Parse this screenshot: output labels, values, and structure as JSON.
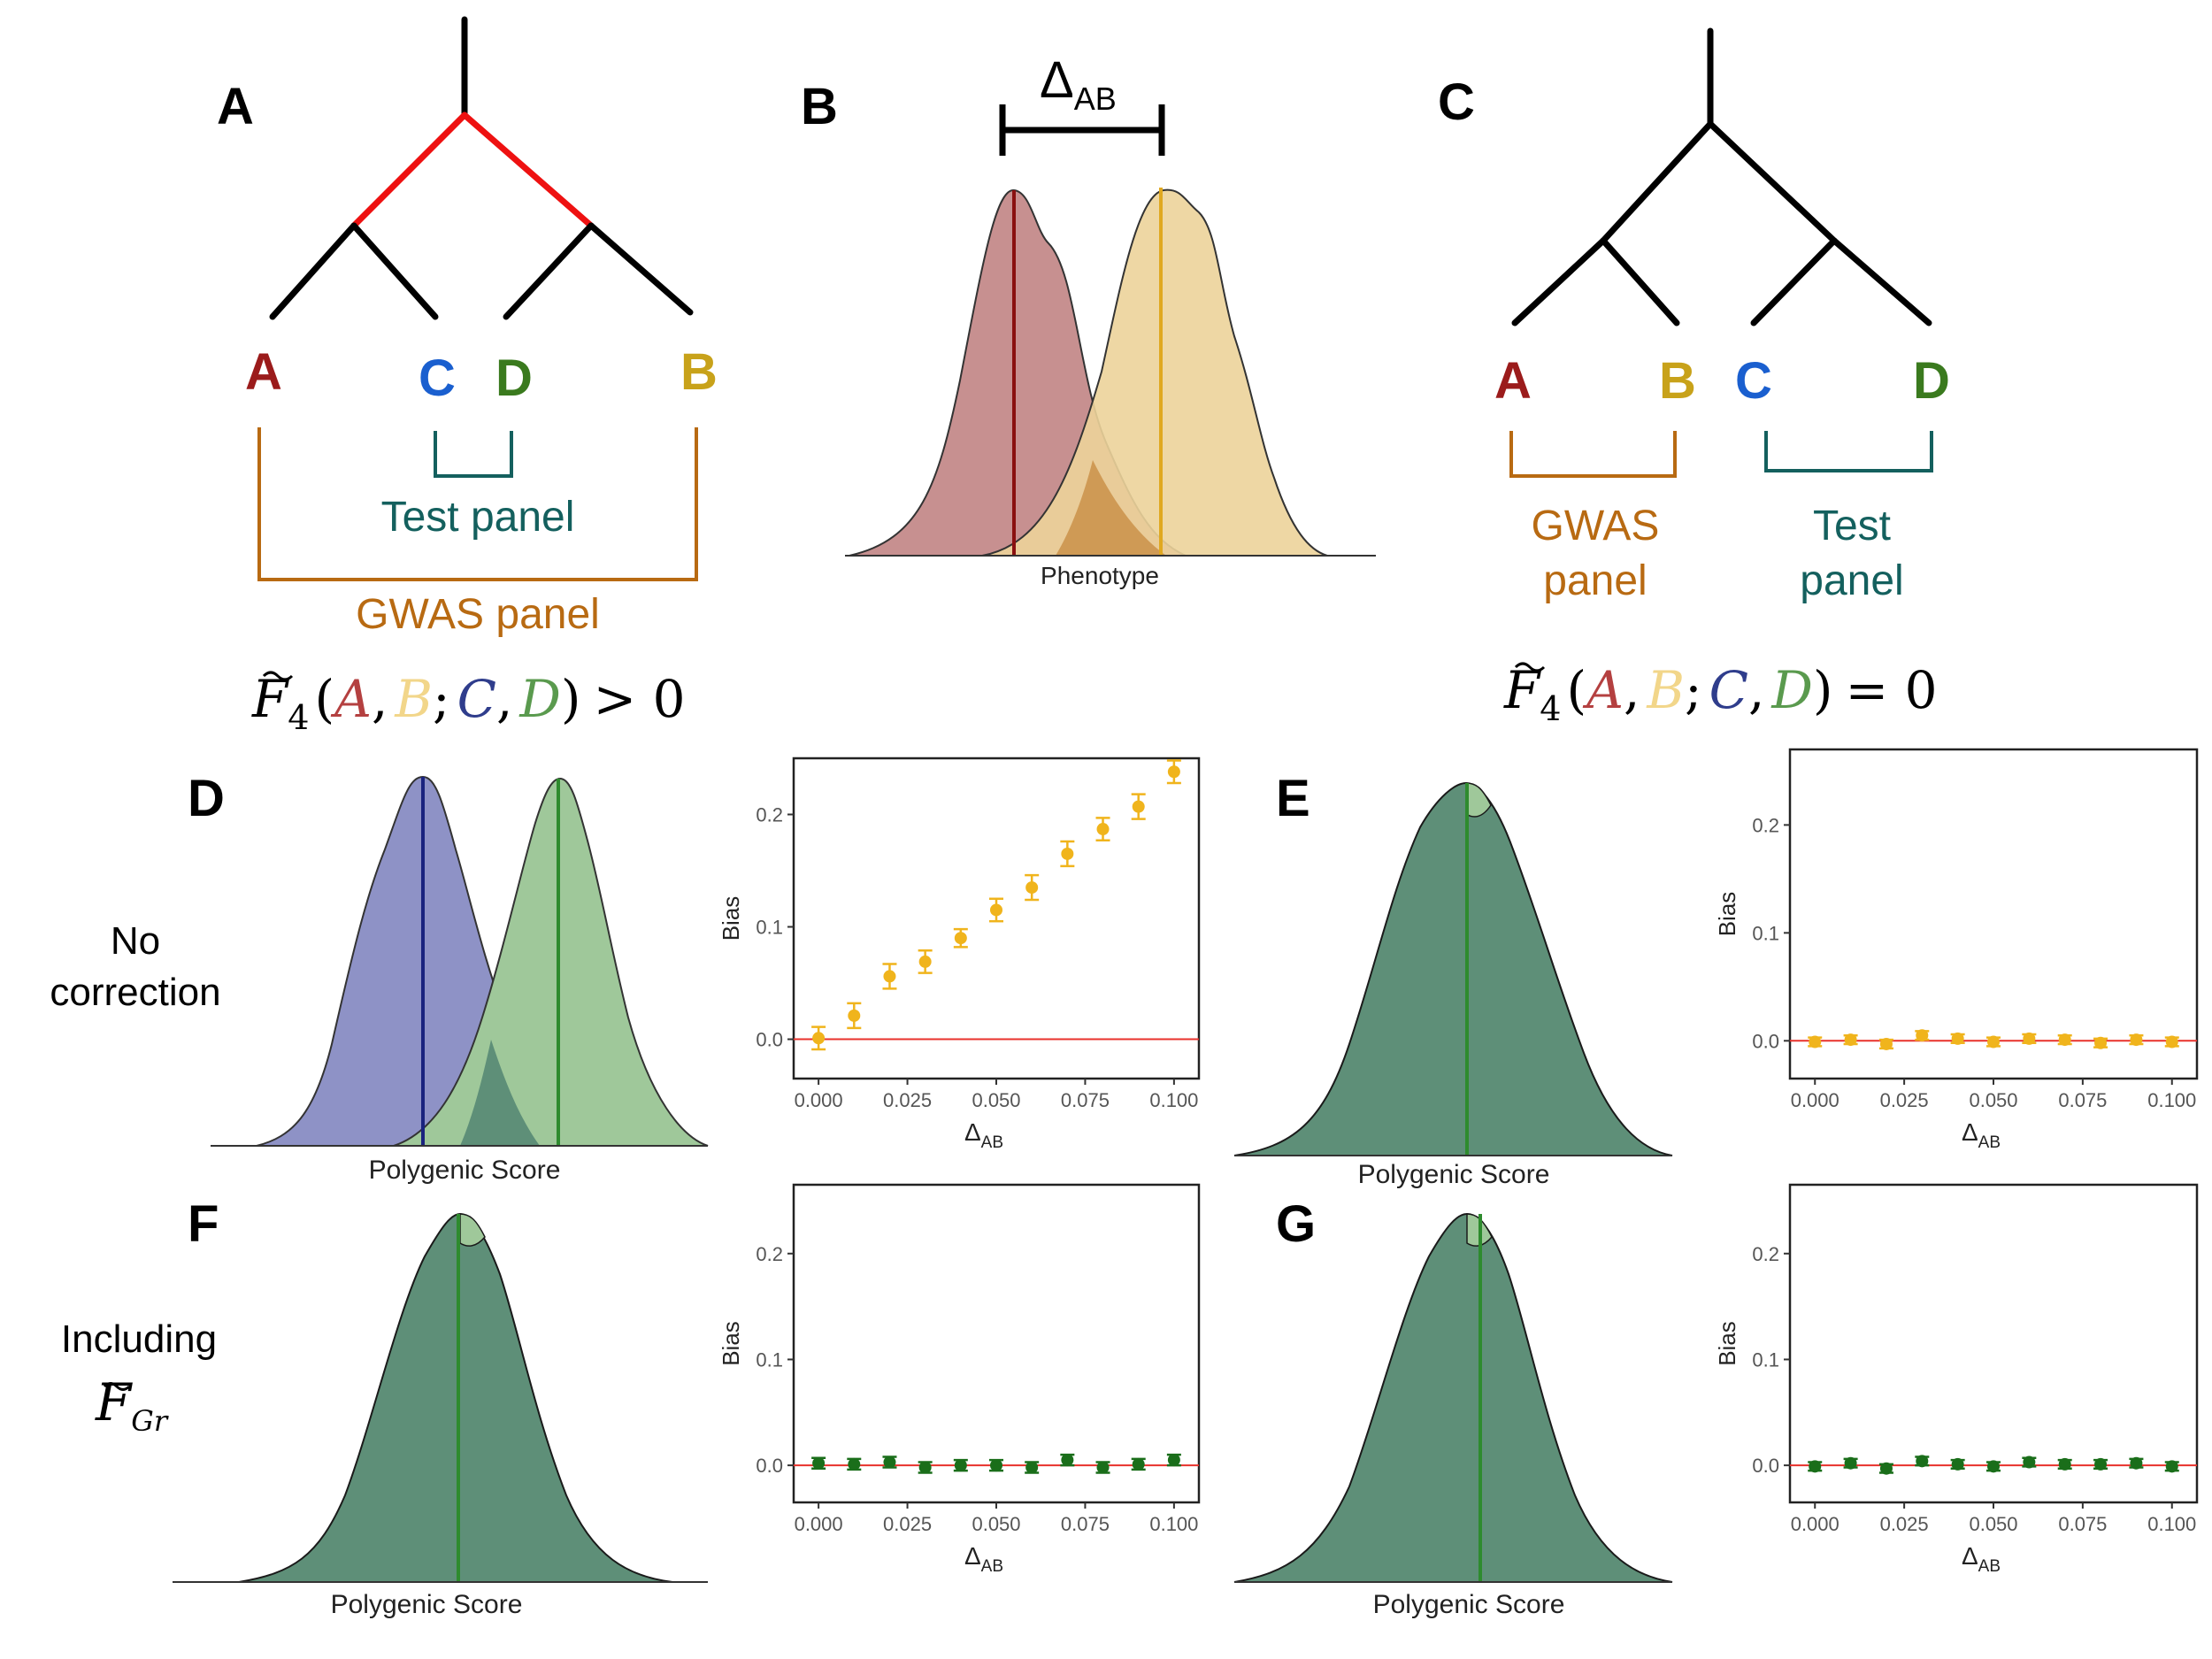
{
  "panels": {
    "A": {
      "letter": "A",
      "leaves": [
        "A",
        "C",
        "D",
        "B"
      ],
      "test_label": "Test panel",
      "gwas_label": "GWAS panel",
      "stat": {
        "f": "F",
        "sub": "4",
        "open": "(",
        "a": "A",
        "c1": ",",
        "b": "B",
        "semi": ";",
        "c": "C",
        "c2": ",",
        "d": "D",
        "close": ")",
        "rel": "> 0"
      }
    },
    "B": {
      "letter": "B",
      "delta": "Δ",
      "delta_sub": "AB",
      "xlabel": "Phenotype"
    },
    "C": {
      "letter": "C",
      "leaves": [
        "A",
        "B",
        "C",
        "D"
      ],
      "gwas_label_1": "GWAS",
      "gwas_label_2": "panel",
      "test_label_1": "Test",
      "test_label_2": "panel",
      "stat": {
        "f": "F",
        "sub": "4",
        "open": "(",
        "a": "A",
        "c1": ",",
        "b": "B",
        "semi": ";",
        "c": "C",
        "c2": ",",
        "d": "D",
        "close": ")",
        "rel": "= 0"
      }
    },
    "D": {
      "letter": "D",
      "xlabel": "Polygenic Score"
    },
    "E": {
      "letter": "E",
      "xlabel": "Polygenic Score"
    },
    "F": {
      "letter": "F",
      "xlabel": "Polygenic Score"
    },
    "G": {
      "letter": "G",
      "xlabel": "Polygenic Score"
    }
  },
  "rows": {
    "no_correction_1": "No",
    "no_correction_2": "correction",
    "including": "Including",
    "fgr_f": "F",
    "fgr_sub": "Gr"
  },
  "colors": {
    "pop_A": "#9b1b1b",
    "pop_B": "#c8a21a",
    "pop_C": "#1a5fcf",
    "pop_D": "#3a7a1e",
    "gwas": "#b86a12",
    "test": "#14605e",
    "branch_red": "#ee1111",
    "dist_A": "#c48a8a",
    "dist_B": "#ecd39a",
    "dist_C": "#8e92c6",
    "dist_D": "#9fc89a",
    "overlap": "#5e8f78",
    "point_yellow": "#f0b41c",
    "point_green": "#1a6e1a",
    "ref_line": "#e8312b"
  },
  "chart_data": [
    {
      "id": "D-bias",
      "type": "scatter",
      "xlabel": "Δ",
      "xlabel_sub": "AB",
      "ylabel": "Bias",
      "xlim": [
        -0.007,
        0.107
      ],
      "ylim": [
        -0.035,
        0.25
      ],
      "xticks": [
        "0.000",
        "0.025",
        "0.050",
        "0.075",
        "0.100"
      ],
      "yticks": [
        "0.0",
        "0.1",
        "0.2"
      ],
      "reference_line": 0,
      "series": [
        {
          "x": [
            0,
            0.01,
            0.02,
            0.03,
            0.04,
            0.05,
            0.06,
            0.07,
            0.08,
            0.09,
            0.1
          ],
          "y": [
            0.001,
            0.021,
            0.056,
            0.069,
            0.09,
            0.115,
            0.135,
            0.165,
            0.187,
            0.207,
            0.238
          ],
          "err": [
            0.01,
            0.011,
            0.011,
            0.01,
            0.008,
            0.01,
            0.011,
            0.011,
            0.01,
            0.011,
            0.01
          ],
          "color": "yellow"
        }
      ]
    },
    {
      "id": "E-bias",
      "type": "scatter",
      "xlabel": "Δ",
      "xlabel_sub": "AB",
      "ylabel": "Bias",
      "xlim": [
        -0.007,
        0.107
      ],
      "ylim": [
        -0.035,
        0.27
      ],
      "xticks": [
        "0.000",
        "0.025",
        "0.050",
        "0.075",
        "0.100"
      ],
      "yticks": [
        "0.0",
        "0.1",
        "0.2"
      ],
      "reference_line": 0,
      "series": [
        {
          "x": [
            0,
            0.01,
            0.02,
            0.03,
            0.04,
            0.05,
            0.06,
            0.07,
            0.08,
            0.09,
            0.1
          ],
          "y": [
            -0.001,
            0.001,
            -0.003,
            0.005,
            0.002,
            -0.001,
            0.002,
            0.001,
            -0.002,
            0.001,
            -0.001
          ],
          "err": [
            0.004,
            0.004,
            0.004,
            0.004,
            0.004,
            0.004,
            0.004,
            0.004,
            0.004,
            0.004,
            0.004
          ],
          "color": "yellow"
        }
      ]
    },
    {
      "id": "F-bias",
      "type": "scatter",
      "xlabel": "Δ",
      "xlabel_sub": "AB",
      "ylabel": "Bias",
      "xlim": [
        -0.007,
        0.107
      ],
      "ylim": [
        -0.035,
        0.265
      ],
      "xticks": [
        "0.000",
        "0.025",
        "0.050",
        "0.075",
        "0.100"
      ],
      "yticks": [
        "0.0",
        "0.1",
        "0.2"
      ],
      "reference_line": 0,
      "series": [
        {
          "x": [
            0,
            0.01,
            0.02,
            0.03,
            0.04,
            0.05,
            0.06,
            0.07,
            0.08,
            0.09,
            0.1
          ],
          "y": [
            0.002,
            0.001,
            0.003,
            -0.002,
            0,
            0,
            -0.002,
            0.005,
            -0.002,
            0.001,
            0.005
          ],
          "err": [
            0.005,
            0.005,
            0.005,
            0.005,
            0.005,
            0.005,
            0.005,
            0.005,
            0.005,
            0.005,
            0.005
          ],
          "color": "green"
        }
      ]
    },
    {
      "id": "G-bias",
      "type": "scatter",
      "xlabel": "Δ",
      "xlabel_sub": "AB",
      "ylabel": "Bias",
      "xlim": [
        -0.007,
        0.107
      ],
      "ylim": [
        -0.035,
        0.265
      ],
      "xticks": [
        "0.000",
        "0.025",
        "0.050",
        "0.075",
        "0.100"
      ],
      "yticks": [
        "0.0",
        "0.1",
        "0.2"
      ],
      "reference_line": 0,
      "series": [
        {
          "x": [
            0,
            0.01,
            0.02,
            0.03,
            0.04,
            0.05,
            0.06,
            0.07,
            0.08,
            0.09,
            0.1
          ],
          "y": [
            -0.001,
            0.002,
            -0.003,
            0.004,
            0.001,
            -0.001,
            0.003,
            0.001,
            0.001,
            0.002,
            -0.001
          ],
          "err": [
            0.004,
            0.004,
            0.004,
            0.004,
            0.004,
            0.004,
            0.004,
            0.004,
            0.004,
            0.004,
            0.004
          ],
          "color": "green"
        }
      ]
    }
  ]
}
